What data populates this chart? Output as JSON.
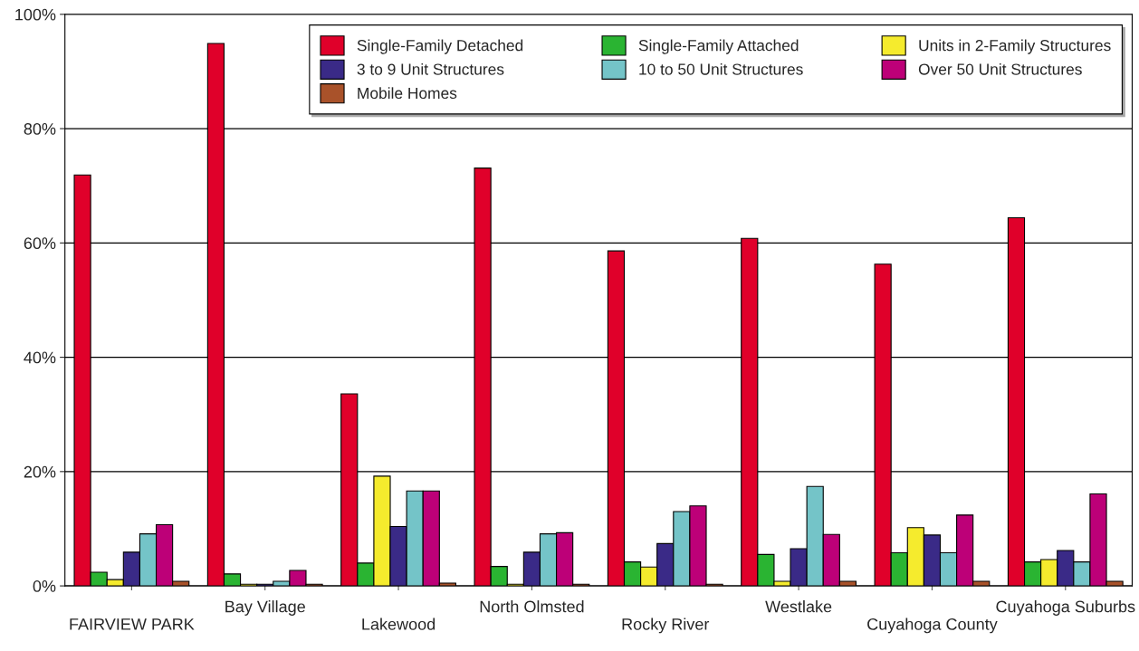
{
  "chart_data": {
    "type": "bar",
    "categories": [
      "FAIRVIEW PARK",
      "Bay Village",
      "Lakewood",
      "North Olmsted",
      "Rocky River",
      "Westlake",
      "Cuyahoga County",
      "Cuyahoga Suburbs"
    ],
    "series": [
      {
        "name": "Single-Family Detached",
        "color": "#e0002a",
        "values": [
          71.9,
          94.9,
          33.6,
          73.1,
          58.6,
          60.8,
          56.3,
          64.4
        ]
      },
      {
        "name": "Single-Family Attached",
        "color": "#2ab432",
        "values": [
          2.4,
          2.1,
          4.0,
          3.4,
          4.2,
          5.5,
          5.8,
          4.2
        ]
      },
      {
        "name": "Units in 2-Family Structures",
        "color": "#f5eb2d",
        "values": [
          1.1,
          0.3,
          19.2,
          0.3,
          3.3,
          0.8,
          10.2,
          4.6
        ]
      },
      {
        "name": "3 to 9 Unit Structures",
        "color": "#3a2a87",
        "values": [
          5.9,
          0.3,
          10.4,
          5.9,
          7.4,
          6.5,
          8.9,
          6.2
        ]
      },
      {
        "name": "10 to 50 Unit Structures",
        "color": "#74c4c8",
        "values": [
          9.1,
          0.8,
          16.6,
          9.1,
          13.0,
          17.4,
          5.8,
          4.2
        ]
      },
      {
        "name": "Over 50 Unit Structures",
        "color": "#bd0078",
        "values": [
          10.7,
          2.7,
          16.6,
          9.3,
          14.0,
          9.0,
          12.4,
          16.1
        ]
      },
      {
        "name": "Mobile Homes",
        "color": "#a9522a",
        "values": [
          0.8,
          0.3,
          0.5,
          0.3,
          0.3,
          0.8,
          0.8,
          0.8
        ]
      }
    ],
    "ylim": [
      0,
      100
    ],
    "yticks": [
      {
        "value": 0,
        "label": "0%"
      },
      {
        "value": 20,
        "label": "20%"
      },
      {
        "value": 40,
        "label": "40%"
      },
      {
        "value": 60,
        "label": "60%"
      },
      {
        "value": 80,
        "label": "80%"
      },
      {
        "value": 100,
        "label": "100%"
      }
    ],
    "grid": "y",
    "legend": "top right"
  }
}
